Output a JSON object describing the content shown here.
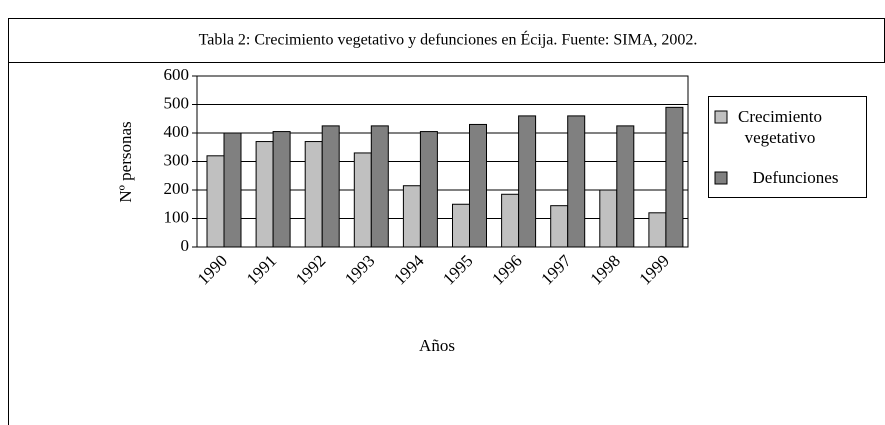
{
  "chart_data": {
    "type": "bar",
    "title": "Tabla 2:  Crecimiento vegetativo y defunciones en Écija. Fuente: SIMA, 2002.",
    "x_label": "Años",
    "y_label": "Nº personas",
    "categories": [
      "1990",
      "1991",
      "1992",
      "1993",
      "1994",
      "1995",
      "1996",
      "1997",
      "1998",
      "1999"
    ],
    "series": [
      {
        "name": "Crecimiento vegetativo",
        "color": "#c0c0c0",
        "values": [
          320,
          370,
          370,
          330,
          215,
          150,
          185,
          145,
          200,
          120
        ]
      },
      {
        "name": "Defunciones",
        "color": "#808080",
        "values": [
          400,
          405,
          425,
          425,
          405,
          430,
          460,
          460,
          425,
          490
        ]
      }
    ],
    "ylim": [
      0,
      600
    ],
    "yticks": [
      0,
      100,
      200,
      300,
      400,
      500,
      600
    ],
    "grid": true,
    "legend": "right"
  }
}
